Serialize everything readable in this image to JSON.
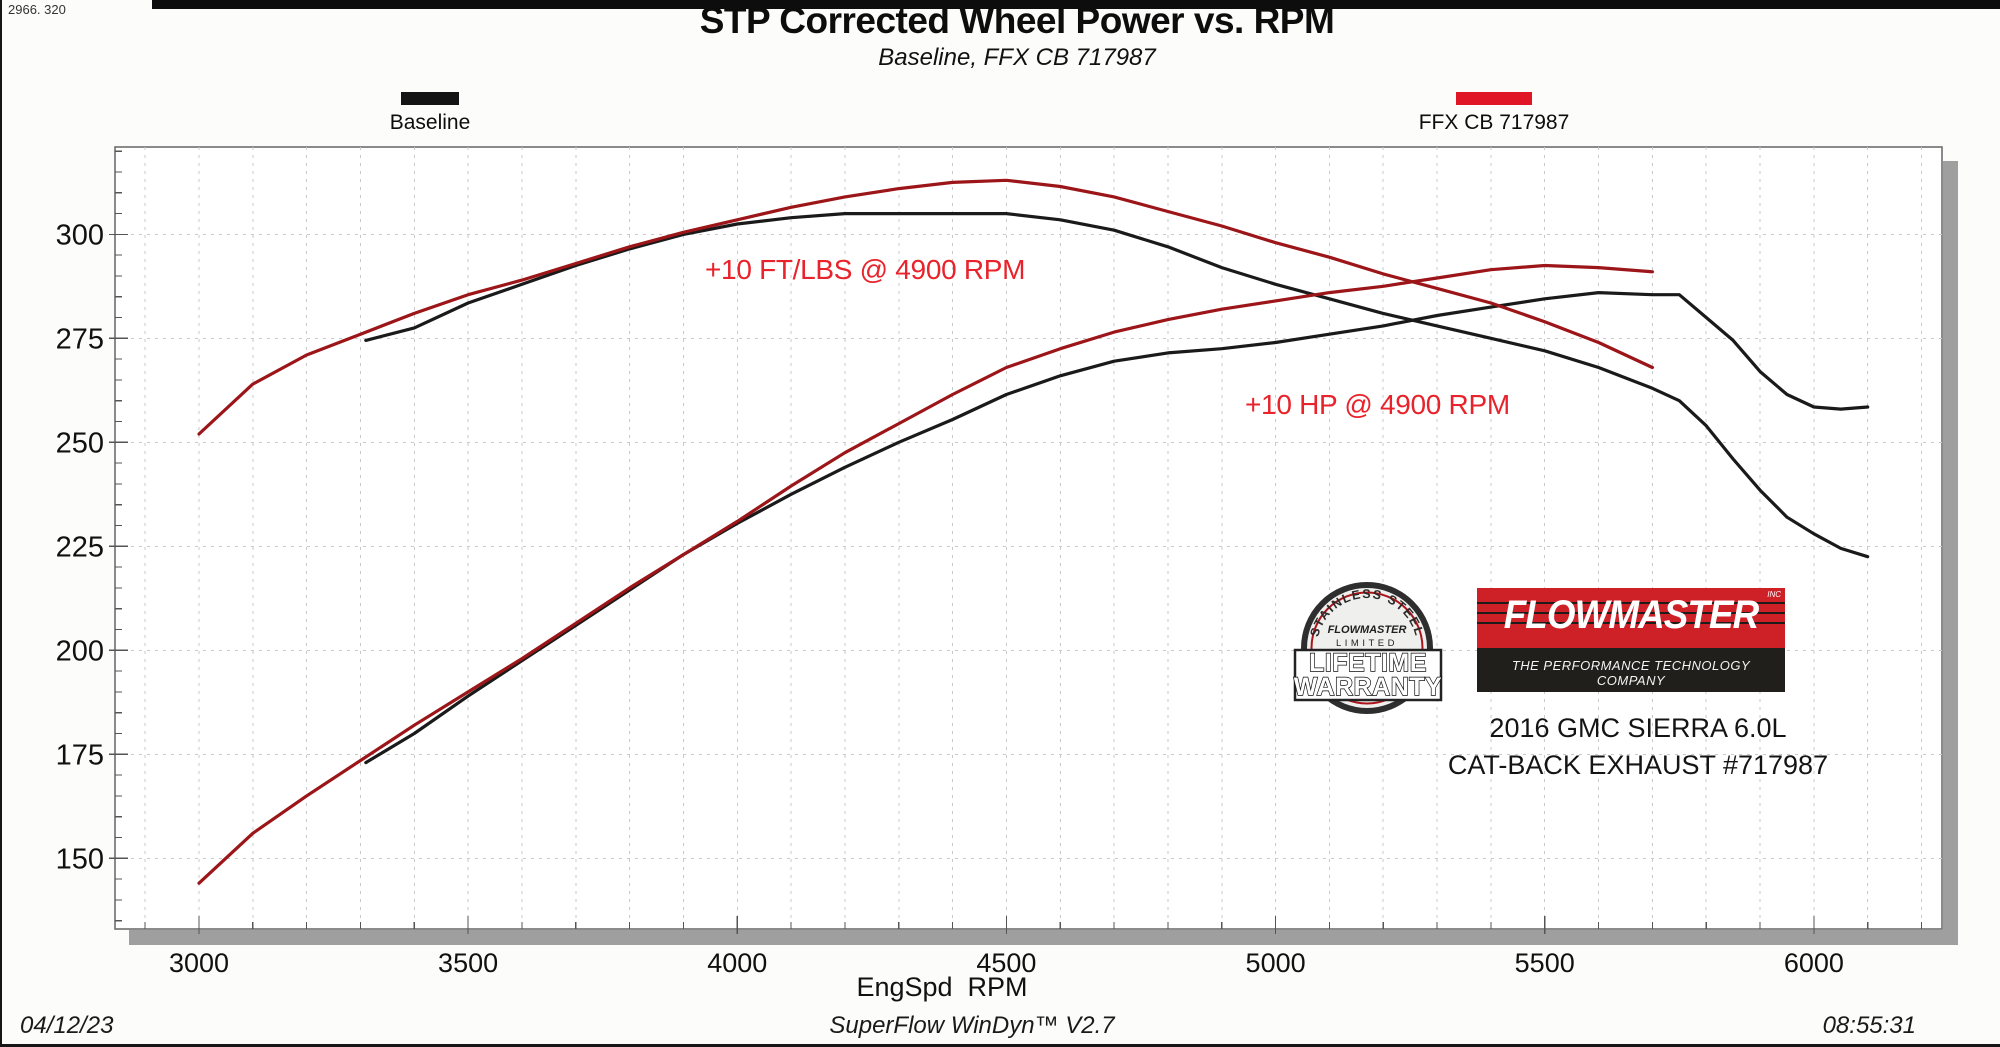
{
  "meta": {
    "run_numbers": "2966. 320"
  },
  "footer": {
    "date": "04/12/23",
    "software": "SuperFlow WinDyn™ V2.7",
    "time": "08:55:31"
  },
  "badge": {
    "arc_text": "STAINLESS STEEL",
    "brand": "FLOWMASTER",
    "limited": "LIMITED",
    "banner_line1": "LIFETIME",
    "banner_line2": "WARRANTY"
  },
  "logo": {
    "brand": "FLOWMASTER",
    "sup": "INC",
    "tagline": "THE PERFORMANCE TECHNOLOGY COMPANY",
    "red_color": "#ce2027",
    "black_color": "#211f1c"
  },
  "vehicle": {
    "line1": "2016 GMC SIERRA 6.0L",
    "line2": "CAT-BACK EXHAUST #717987"
  },
  "chart_data": {
    "type": "line",
    "title": "STP Corrected Wheel Power vs. RPM",
    "subtitle": "Baseline, FFX CB 717987",
    "xlabel": "EngSpd  RPM",
    "ylabel": "",
    "x_ticks": [
      3000,
      3500,
      4000,
      4500,
      5000,
      5500,
      6000
    ],
    "y_ticks": [
      150,
      175,
      200,
      225,
      250,
      275,
      300
    ],
    "x_range": [
      2844,
      6238
    ],
    "y_range": [
      133,
      321
    ],
    "grid": {
      "x_step": 100,
      "y_step": 25,
      "style": "dashed"
    },
    "legend_position": "top",
    "legend": [
      {
        "label": "Baseline",
        "color": "#141414"
      },
      {
        "label": "FFX CB 717987",
        "color": "#e01525"
      }
    ],
    "annotations": [
      {
        "text": "+10 FT/LBS @ 4900 RPM",
        "color": "#e8232b"
      },
      {
        "text": "+10 HP @ 4900 RPM",
        "color": "#e8232b"
      }
    ],
    "series": [
      {
        "name": "Baseline wheel torque (ft-lbs)",
        "color": "#1a1a1a",
        "x": [
          3310,
          3400,
          3500,
          3600,
          3700,
          3800,
          3900,
          4000,
          4100,
          4200,
          4300,
          4400,
          4500,
          4600,
          4700,
          4800,
          4900,
          5000,
          5100,
          5200,
          5300,
          5400,
          5500,
          5600,
          5700,
          5750,
          5800,
          5850,
          5900,
          5950,
          6000,
          6050,
          6100
        ],
        "y": [
          274.5,
          277.5,
          283.5,
          288,
          292.5,
          296.5,
          300,
          302.5,
          304,
          305,
          305,
          305,
          305,
          303.5,
          301,
          297,
          292,
          288,
          284.5,
          281,
          278,
          275,
          272,
          268,
          263,
          260,
          254,
          246,
          238.5,
          232,
          228,
          224.5,
          222.5
        ]
      },
      {
        "name": "Baseline wheel power (hp)",
        "color": "#1a1a1a",
        "x": [
          3310,
          3400,
          3500,
          3600,
          3700,
          3800,
          3900,
          4000,
          4100,
          4200,
          4300,
          4400,
          4500,
          4600,
          4700,
          4800,
          4900,
          5000,
          5100,
          5200,
          5300,
          5400,
          5500,
          5600,
          5700,
          5750,
          5800,
          5850,
          5900,
          5950,
          6000,
          6050,
          6100
        ],
        "y": [
          173,
          180,
          189,
          197.5,
          206,
          214.5,
          223,
          230.5,
          237.5,
          244,
          250,
          255.5,
          261.5,
          266,
          269.5,
          271.5,
          272.5,
          274,
          276,
          278,
          280.5,
          282.5,
          284.5,
          286,
          285.5,
          285.5,
          280,
          274.5,
          267,
          261.5,
          258.5,
          258,
          258.5
        ]
      },
      {
        "name": "FFX CB 717987 wheel torque (ft-lbs)",
        "color": "#9c1518",
        "x": [
          3000,
          3100,
          3200,
          3300,
          3400,
          3500,
          3600,
          3700,
          3800,
          3900,
          4000,
          4100,
          4200,
          4300,
          4400,
          4500,
          4600,
          4700,
          4800,
          4900,
          5000,
          5100,
          5200,
          5300,
          5400,
          5500,
          5600,
          5700
        ],
        "y": [
          252,
          264,
          271,
          276,
          281,
          285.5,
          289,
          293,
          297,
          300.5,
          303.5,
          306.5,
          309,
          311,
          312.5,
          313,
          311.5,
          309,
          305.5,
          302,
          298,
          294.5,
          290.5,
          287,
          283.5,
          279,
          274,
          268
        ]
      },
      {
        "name": "FFX CB 717987 wheel power (hp)",
        "color": "#9c1518",
        "x": [
          3000,
          3100,
          3200,
          3300,
          3400,
          3500,
          3600,
          3700,
          3800,
          3900,
          4000,
          4100,
          4200,
          4300,
          4400,
          4500,
          4600,
          4700,
          4800,
          4900,
          5000,
          5100,
          5200,
          5300,
          5400,
          5500,
          5600,
          5700
        ],
        "y": [
          144,
          156,
          165,
          173.5,
          182,
          190,
          198,
          206.5,
          215,
          223,
          231,
          239.5,
          247.5,
          254.5,
          261.5,
          268,
          272.5,
          276.5,
          279.5,
          282,
          284,
          286,
          287.5,
          289.5,
          291.5,
          292.5,
          292,
          291
        ]
      }
    ]
  }
}
